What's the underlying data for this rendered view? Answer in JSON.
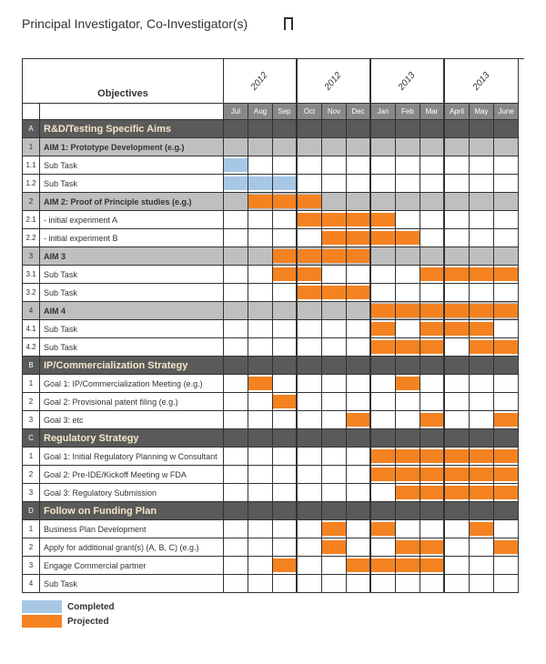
{
  "title": "Principal Investigator, Co-Investigator(s)",
  "objectives_header": "Objectives",
  "colors": {
    "completed": "#a7c7e7",
    "projected": "#f58220",
    "section_bg": "#5a5a5a",
    "section_text": "#f4e6c8",
    "aim_bg": "#bfbfbf",
    "month_header_bg": "#888888",
    "border": "#333333",
    "background": "#ffffff"
  },
  "years": [
    "2012",
    "2012",
    "2013",
    "2013"
  ],
  "months": [
    "Jul",
    "Aug",
    "Sep",
    "Oct",
    "Nov",
    "Dec",
    "Jan",
    "Feb",
    "Mar",
    "April",
    "May",
    "June"
  ],
  "legend": {
    "completed": "Completed",
    "projected": "Projected"
  },
  "rows": [
    {
      "type": "section",
      "id": "A",
      "label": "R&D/Testing Specific Aims",
      "bars": []
    },
    {
      "type": "aim",
      "id": "1",
      "label": "AIM 1: Prototype Development (e.g.)",
      "bars": []
    },
    {
      "type": "task",
      "id": "1.1",
      "label": "Sub Task",
      "bars": [
        {
          "start": 0,
          "end": 0,
          "color": "completed"
        }
      ]
    },
    {
      "type": "task",
      "id": "1.2",
      "label": "Sub Task",
      "bars": [
        {
          "start": 0,
          "end": 2,
          "color": "completed"
        }
      ]
    },
    {
      "type": "aim",
      "id": "2",
      "label": "AIM 2: Proof of Principle studies (e.g.)",
      "bars": [
        {
          "start": 1,
          "end": 3,
          "color": "projected"
        }
      ]
    },
    {
      "type": "task",
      "id": "2.1",
      "label": "  - initial experiment A",
      "bars": [
        {
          "start": 3,
          "end": 6,
          "color": "projected"
        }
      ]
    },
    {
      "type": "task",
      "id": "2.2",
      "label": "  - initial experiment B",
      "bars": [
        {
          "start": 4,
          "end": 7,
          "color": "projected"
        }
      ]
    },
    {
      "type": "aim",
      "id": "3",
      "label": "AIM 3",
      "bars": [
        {
          "start": 2,
          "end": 5,
          "color": "projected"
        }
      ]
    },
    {
      "type": "task",
      "id": "3.1",
      "label": "Sub Task",
      "bars": [
        {
          "start": 2,
          "end": 3,
          "color": "projected"
        },
        {
          "start": 8,
          "end": 11,
          "color": "projected"
        }
      ]
    },
    {
      "type": "task",
      "id": "3.2",
      "label": "Sub Task",
      "bars": [
        {
          "start": 3,
          "end": 5,
          "color": "projected"
        }
      ]
    },
    {
      "type": "aim",
      "id": "4",
      "label": "AIM 4",
      "bars": [
        {
          "start": 6,
          "end": 11,
          "color": "projected"
        }
      ]
    },
    {
      "type": "task",
      "id": "4.1",
      "label": "Sub Task",
      "bars": [
        {
          "start": 6,
          "end": 6,
          "color": "projected"
        },
        {
          "start": 8,
          "end": 10,
          "color": "projected"
        }
      ]
    },
    {
      "type": "task",
      "id": "4.2",
      "label": "Sub Task",
      "bars": [
        {
          "start": 6,
          "end": 8,
          "color": "projected"
        },
        {
          "start": 10,
          "end": 11,
          "color": "projected"
        }
      ]
    },
    {
      "type": "section",
      "id": "B",
      "label": "IP/Commercialization Strategy",
      "bars": []
    },
    {
      "type": "task",
      "id": "1",
      "label": "Goal 1: IP/Commercialization Meeting (e.g.)",
      "bars": [
        {
          "start": 1,
          "end": 1,
          "color": "projected"
        },
        {
          "start": 7,
          "end": 7,
          "color": "projected"
        }
      ]
    },
    {
      "type": "task",
      "id": "2",
      "label": "Goal 2: Provisional patent filing (e.g.)",
      "bars": [
        {
          "start": 2,
          "end": 2,
          "color": "projected"
        }
      ]
    },
    {
      "type": "task",
      "id": "3",
      "label": "Goal 3: etc",
      "bars": [
        {
          "start": 5,
          "end": 5,
          "color": "projected"
        },
        {
          "start": 8,
          "end": 8,
          "color": "projected"
        },
        {
          "start": 11,
          "end": 11,
          "color": "projected"
        }
      ]
    },
    {
      "type": "section",
      "id": "C",
      "label": "Regulatory Strategy",
      "bars": []
    },
    {
      "type": "task",
      "id": "1",
      "label": "Goal 1: Initial Regulatory Planning w Consultant",
      "bars": [
        {
          "start": 6,
          "end": 11,
          "color": "projected"
        }
      ]
    },
    {
      "type": "task",
      "id": "2",
      "label": "Goal 2: Pre-IDE/Kickoff Meeting w FDA",
      "bars": [
        {
          "start": 6,
          "end": 11,
          "color": "projected"
        }
      ]
    },
    {
      "type": "task",
      "id": "3",
      "label": "Goal 3: Regulatory Submission",
      "bars": [
        {
          "start": 7,
          "end": 11,
          "color": "projected"
        }
      ]
    },
    {
      "type": "section",
      "id": "D",
      "label": "Follow on Funding Plan",
      "bars": []
    },
    {
      "type": "task",
      "id": "1",
      "label": "Business Plan Development",
      "bars": [
        {
          "start": 4,
          "end": 4,
          "color": "projected"
        },
        {
          "start": 6,
          "end": 6,
          "color": "projected"
        },
        {
          "start": 10,
          "end": 10,
          "color": "projected"
        }
      ]
    },
    {
      "type": "task",
      "id": "2",
      "label": "Apply for additional grant(s) (A, B, C) (e.g.)",
      "bars": [
        {
          "start": 4,
          "end": 4,
          "color": "projected"
        },
        {
          "start": 7,
          "end": 8,
          "color": "projected"
        },
        {
          "start": 11,
          "end": 11,
          "color": "projected"
        }
      ]
    },
    {
      "type": "task",
      "id": "3",
      "label": "Engage Commercial partner",
      "bars": [
        {
          "start": 2,
          "end": 2,
          "color": "projected"
        },
        {
          "start": 5,
          "end": 8,
          "color": "projected"
        }
      ]
    },
    {
      "type": "task",
      "id": "4",
      "label": "Sub Task",
      "bars": []
    }
  ]
}
